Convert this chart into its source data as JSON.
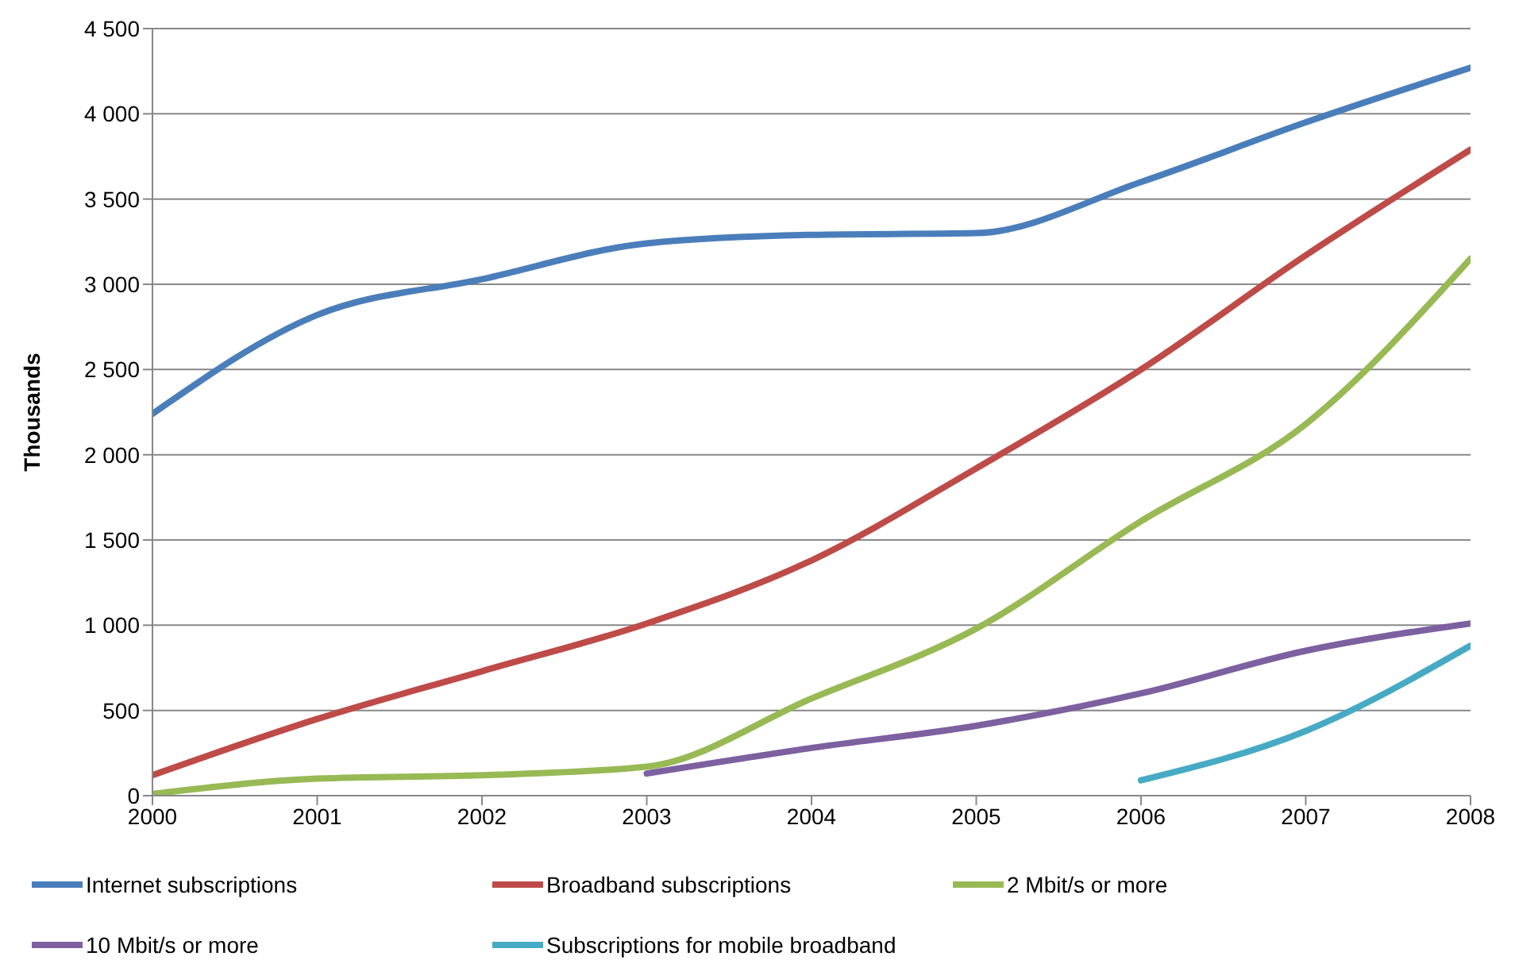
{
  "chart_data": {
    "type": "line",
    "ylabel": "Thousands",
    "categories": [
      "2000",
      "2001",
      "2002",
      "2003",
      "2004",
      "2005",
      "2006",
      "2007",
      "2008"
    ],
    "series": [
      {
        "name": "Internet subscriptions",
        "color": "#4a7ebb",
        "values": [
          2240,
          2820,
          3030,
          3240,
          3290,
          3300,
          3600,
          3950,
          4270
        ]
      },
      {
        "name": "Broadband subscriptions",
        "color": "#be4b48",
        "values": [
          120,
          450,
          730,
          1010,
          1380,
          1920,
          2500,
          3170,
          3790
        ]
      },
      {
        "name": "2 Mbit/s or more",
        "color": "#98b954",
        "values": [
          10,
          100,
          120,
          170,
          570,
          980,
          1610,
          2180,
          3150
        ]
      },
      {
        "name": "10 Mbit/s or more",
        "color": "#7d60a0",
        "values": [
          null,
          null,
          null,
          130,
          280,
          410,
          600,
          850,
          1010
        ]
      },
      {
        "name": "Subscriptions for mobile broadband",
        "color": "#46aac5",
        "values": [
          null,
          null,
          null,
          null,
          null,
          null,
          90,
          380,
          880
        ]
      }
    ],
    "ylim": [
      0,
      4500
    ],
    "yticks": [
      0,
      500,
      {
        "value": 1000,
        "label": "1 000"
      },
      {
        "value": 1500,
        "label": "1 500"
      },
      {
        "value": 2000,
        "label": "2 000"
      },
      {
        "value": 2500,
        "label": "2 500"
      },
      {
        "value": 3000,
        "label": "3 000"
      },
      {
        "value": 3500,
        "label": "3 500"
      },
      {
        "value": 4000,
        "label": "4 000"
      },
      {
        "value": 4500,
        "label": "4 500"
      }
    ],
    "grid": "y",
    "legend": "bottom",
    "marker": "none",
    "line_style": "solid"
  }
}
